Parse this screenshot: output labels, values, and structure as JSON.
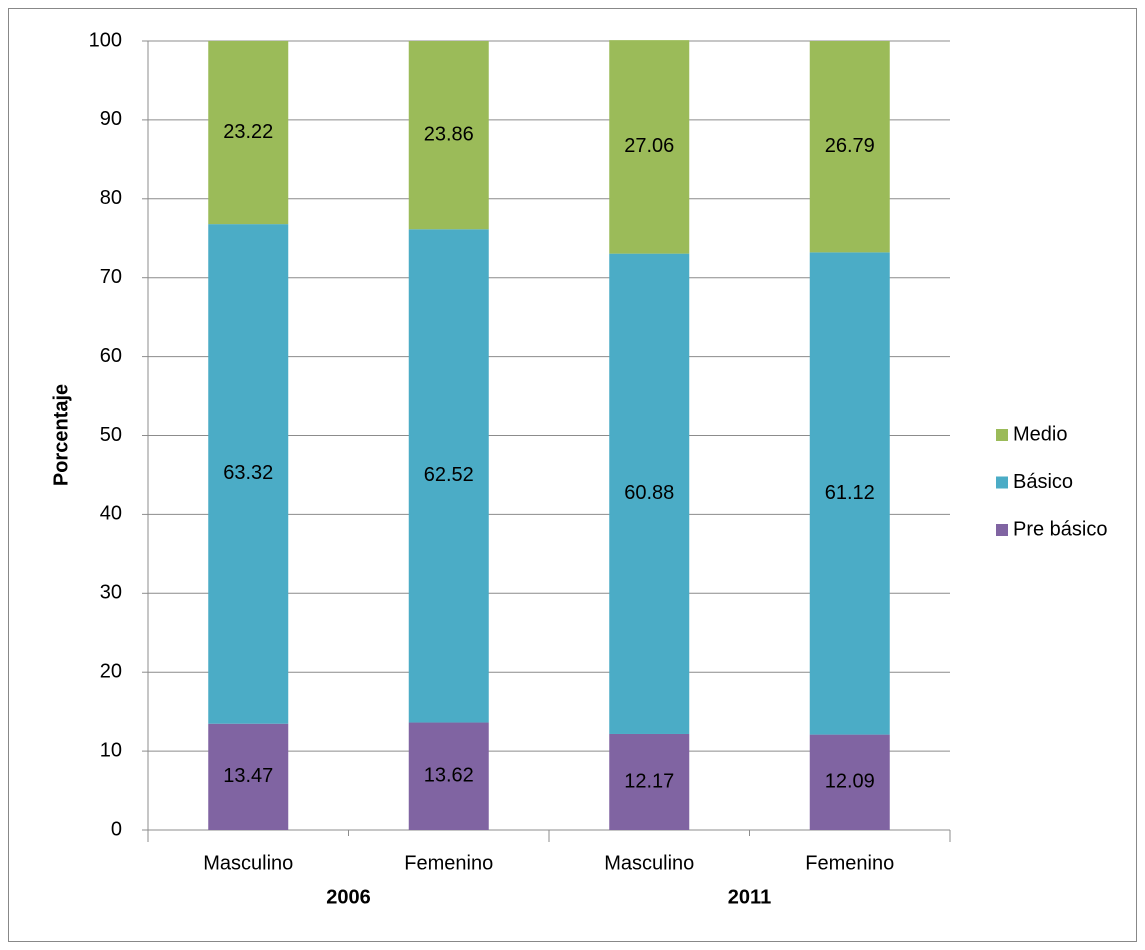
{
  "chart_data": {
    "type": "stacked_bar",
    "y_label": "Porcentaje",
    "categories": [
      "Masculino",
      "Femenino",
      "Masculino",
      "Femenino"
    ],
    "groups": [
      "2006",
      "2011"
    ],
    "series": [
      {
        "name": "Pre básico",
        "color": "#8064a2",
        "values": [
          13.47,
          13.62,
          12.17,
          12.09
        ]
      },
      {
        "name": "Básico",
        "color": "#4bacc6",
        "values": [
          63.32,
          62.52,
          60.88,
          61.12
        ]
      },
      {
        "name": "Medio",
        "color": "#9bbb59",
        "values": [
          23.22,
          23.86,
          27.06,
          26.79
        ]
      }
    ],
    "ylim": [
      0,
      100
    ],
    "yticks": [
      0,
      10,
      20,
      30,
      40,
      50,
      60,
      70,
      80,
      90,
      100
    ],
    "grid": true,
    "legend": "right"
  }
}
